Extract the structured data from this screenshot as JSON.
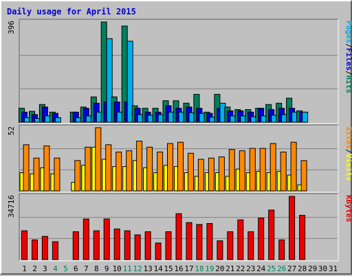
{
  "title": "Daily usage for April 2015",
  "colors": {
    "background": "#c0c0c0",
    "plot": "#c0c0c0",
    "title": "#0000cc",
    "hits": "#00805c",
    "files": "#0000dd",
    "pages": "#00b0ee",
    "visits": "#ffff00",
    "sites": "#ff8800",
    "kbytes": "#ee0000",
    "weekend": "#00805c",
    "weekday": "#000000",
    "gridline": "#808080"
  },
  "side_labels": {
    "top": [
      {
        "text": "Pages",
        "color": "#00b0ee"
      },
      {
        "text": "/",
        "color": "#000000"
      },
      {
        "text": "Files",
        "color": "#0000dd"
      },
      {
        "text": "/",
        "color": "#000000"
      },
      {
        "text": "Hits",
        "color": "#00805c"
      }
    ],
    "middle": [
      {
        "text": "Sites",
        "color": "#ff8800"
      },
      {
        "text": "/",
        "color": "#000000"
      },
      {
        "text": "Visits",
        "color": "#ffff00"
      }
    ],
    "bottom": [
      {
        "text": "KBytes",
        "color": "#ee0000"
      }
    ]
  },
  "chart_data": [
    {
      "type": "bar",
      "name": "hits-files-pages",
      "ymax_label": "396",
      "ylim": [
        0,
        396
      ],
      "x": [
        1,
        2,
        3,
        4,
        5,
        6,
        7,
        8,
        9,
        10,
        11,
        12,
        13,
        14,
        15,
        16,
        17,
        18,
        19,
        20,
        21,
        22,
        23,
        24,
        25,
        26,
        27,
        28,
        29,
        30,
        31
      ],
      "weekend_days": [
        4,
        5,
        11,
        12,
        18,
        19,
        25,
        26
      ],
      "series": [
        {
          "name": "Hits",
          "color_key": "hits",
          "values": [
            55,
            43,
            70,
            40,
            0,
            40,
            60,
            100,
            396,
            100,
            380,
            65,
            55,
            55,
            85,
            85,
            75,
            110,
            40,
            110,
            60,
            50,
            50,
            55,
            70,
            75,
            95,
            45,
            0,
            0,
            0
          ]
        },
        {
          "name": "Files",
          "color_key": "files",
          "values": [
            40,
            30,
            60,
            35,
            0,
            40,
            55,
            75,
            80,
            80,
            80,
            55,
            40,
            40,
            65,
            55,
            60,
            55,
            35,
            55,
            45,
            45,
            40,
            55,
            50,
            55,
            55,
            40,
            0,
            0,
            0
          ]
        },
        {
          "name": "Pages",
          "color_key": "pages",
          "values": [
            18,
            15,
            25,
            18,
            0,
            18,
            25,
            40,
            330,
            40,
            320,
            30,
            28,
            30,
            40,
            40,
            38,
            35,
            20,
            75,
            25,
            25,
            22,
            25,
            28,
            30,
            40,
            40,
            0,
            0,
            0
          ]
        }
      ]
    },
    {
      "type": "bar",
      "name": "visits-sites",
      "ymax_label": "52",
      "ylim": [
        0,
        52
      ],
      "x": [
        1,
        2,
        3,
        4,
        5,
        6,
        7,
        8,
        9,
        10,
        11,
        12,
        13,
        14,
        15,
        16,
        17,
        18,
        19,
        20,
        21,
        22,
        23,
        24,
        25,
        26,
        27,
        28,
        29,
        30,
        31
      ],
      "weekend_days": [
        4,
        5,
        11,
        12,
        18,
        19,
        25,
        26
      ],
      "series": [
        {
          "name": "Visits",
          "color_key": "visits",
          "values": [
            15,
            14,
            19,
            14,
            0,
            7,
            21,
            36,
            26,
            20,
            20,
            25,
            19,
            15,
            21,
            20,
            15,
            12,
            15,
            15,
            12,
            18,
            15,
            16,
            15,
            16,
            13,
            5,
            0,
            0,
            0
          ]
        },
        {
          "name": "Sites",
          "color_key": "sites",
          "values": [
            38,
            27,
            37,
            27,
            0,
            25,
            36,
            52,
            38,
            32,
            33,
            41,
            36,
            32,
            39,
            40,
            31,
            26,
            27,
            28,
            34,
            33,
            35,
            35,
            39,
            32,
            40,
            25,
            0,
            0,
            0
          ]
        }
      ]
    },
    {
      "type": "bar",
      "name": "kbytes",
      "ymax_label": "34716",
      "ylim": [
        0,
        34716
      ],
      "x": [
        1,
        2,
        3,
        4,
        5,
        6,
        7,
        8,
        9,
        10,
        11,
        12,
        13,
        14,
        15,
        16,
        17,
        18,
        19,
        20,
        21,
        22,
        23,
        24,
        25,
        26,
        27,
        28,
        29,
        30,
        31
      ],
      "weekend_days": [
        4,
        5,
        11,
        12,
        18,
        19,
        25,
        26
      ],
      "series": [
        {
          "name": "KBytes",
          "color_key": "kbytes",
          "values": [
            15800,
            10800,
            12700,
            9800,
            0,
            15300,
            22300,
            15800,
            22300,
            16800,
            15800,
            13600,
            15300,
            9100,
            15300,
            25200,
            20300,
            19300,
            19800,
            10300,
            15300,
            21800,
            15300,
            22800,
            27200,
            10800,
            34716,
            24300,
            0,
            0,
            0
          ]
        }
      ]
    }
  ]
}
